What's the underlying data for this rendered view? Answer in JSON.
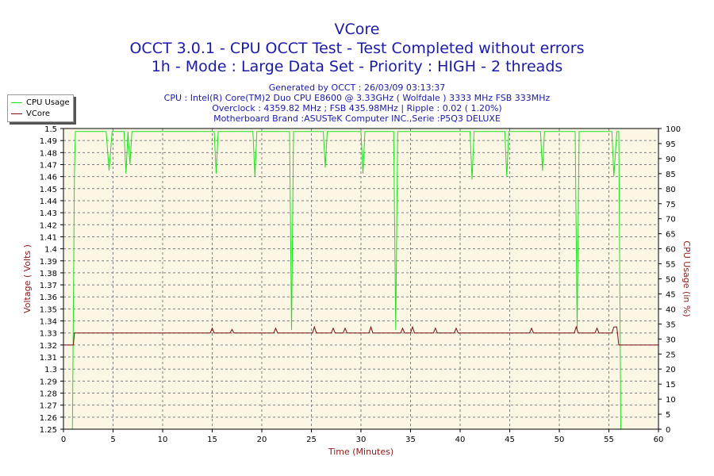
{
  "chart_data": {
    "type": "line",
    "title": "VCore",
    "subtitle1": "OCCT 3.0.1 - CPU OCCT Test - Test Completed without errors",
    "subtitle2": "1h - Mode : Large Data Set - Priority : HIGH - 2 threads",
    "info": [
      "Generated by OCCT : 26/03/09 03:13:37",
      "CPU : Intel(R) Core(TM)2 Duo CPU E8600 @ 3.33GHz ( Wolfdale ) 3333 MHz FSB 333MHz",
      "Overclock : 4359.82 MHz ; FSB 435.98MHz | Ripple : 0.02 ( 1.20%)",
      "Motherboard Brand :ASUSTeK Computer INC.,Serie :P5Q3 DELUXE"
    ],
    "xlabel": "Time (Minutes)",
    "ylabel": "Voltage ( Volts )",
    "y2label": "CPU Usage (in %)",
    "xlim": [
      0,
      60
    ],
    "ylim": [
      1.25,
      1.5
    ],
    "y2lim": [
      0,
      100
    ],
    "x_ticks": [
      "0",
      "5",
      "10",
      "15",
      "20",
      "25",
      "30",
      "35",
      "40",
      "45",
      "50",
      "55",
      "60"
    ],
    "y_ticks": [
      "1.25",
      "1.26",
      "1.27",
      "1.28",
      "1.29",
      "1.3",
      "1.31",
      "1.32",
      "1.33",
      "1.34",
      "1.35",
      "1.36",
      "1.37",
      "1.38",
      "1.39",
      "1.4",
      "1.41",
      "1.42",
      "1.43",
      "1.44",
      "1.45",
      "1.46",
      "1.47",
      "1.48",
      "1.49",
      "1.5"
    ],
    "y2_ticks": [
      "0",
      "5",
      "10",
      "15",
      "20",
      "25",
      "30",
      "35",
      "40",
      "45",
      "50",
      "55",
      "60",
      "65",
      "70",
      "75",
      "80",
      "85",
      "90",
      "95",
      "100"
    ],
    "grid": true,
    "legend_position": "top-left",
    "colors": {
      "cpu_usage": "#22dd22",
      "vcore": "#7a1010",
      "plot_bg": "#fbf7e4",
      "grid": "#808080",
      "title": "#1a1aa8",
      "axis_label": "#8b1a1a"
    },
    "series": [
      {
        "name": "CPU Usage",
        "axis": "y2",
        "x": [
          0.9,
          1.0,
          1.1,
          1.2,
          4.3,
          4.6,
          4.9,
          6.1,
          6.3,
          6.5,
          6.7,
          6.9,
          15.2,
          15.4,
          15.6,
          19.1,
          19.3,
          19.5,
          22.8,
          23.0,
          23.2,
          26.2,
          26.4,
          26.6,
          30.0,
          30.2,
          30.4,
          33.3,
          33.5,
          33.7,
          41.0,
          41.2,
          41.4,
          44.5,
          44.7,
          44.9,
          48.1,
          48.3,
          48.5,
          51.6,
          51.8,
          52.0,
          55.3,
          55.5,
          55.8,
          56.0,
          56.2,
          56.5,
          60
        ],
        "values": [
          0,
          40,
          85,
          99,
          99,
          86,
          99,
          99,
          85,
          99,
          88,
          99,
          99,
          85,
          99,
          99,
          84,
          99,
          99,
          33,
          99,
          99,
          87,
          99,
          99,
          85,
          99,
          99,
          33,
          99,
          99,
          83,
          99,
          99,
          84,
          99,
          99,
          86,
          99,
          99,
          33,
          99,
          99,
          84,
          99,
          99,
          0,
          0,
          0
        ]
      },
      {
        "name": "VCore",
        "axis": "y",
        "x": [
          0,
          1.0,
          1.1,
          14.8,
          15.0,
          15.2,
          16.8,
          17.0,
          17.2,
          21.2,
          21.4,
          21.6,
          25.1,
          25.3,
          25.5,
          27.0,
          27.2,
          27.4,
          28.2,
          28.4,
          28.6,
          30.8,
          31.0,
          31.2,
          34.0,
          34.2,
          34.4,
          35.0,
          35.2,
          35.4,
          37.3,
          37.5,
          37.7,
          39.4,
          39.6,
          39.8,
          47.0,
          47.2,
          47.4,
          51.5,
          51.7,
          51.9,
          53.6,
          53.8,
          54.0,
          55.3,
          55.5,
          55.8,
          56.0,
          56.1,
          60
        ],
        "values": [
          1.32,
          1.32,
          1.33,
          1.33,
          1.334,
          1.33,
          1.33,
          1.333,
          1.33,
          1.33,
          1.334,
          1.33,
          1.33,
          1.335,
          1.33,
          1.33,
          1.334,
          1.33,
          1.33,
          1.334,
          1.33,
          1.33,
          1.335,
          1.33,
          1.33,
          1.334,
          1.33,
          1.33,
          1.335,
          1.33,
          1.33,
          1.334,
          1.33,
          1.33,
          1.334,
          1.33,
          1.33,
          1.334,
          1.33,
          1.33,
          1.335,
          1.33,
          1.33,
          1.334,
          1.33,
          1.33,
          1.335,
          1.335,
          1.32,
          1.32,
          1.32
        ]
      }
    ]
  }
}
